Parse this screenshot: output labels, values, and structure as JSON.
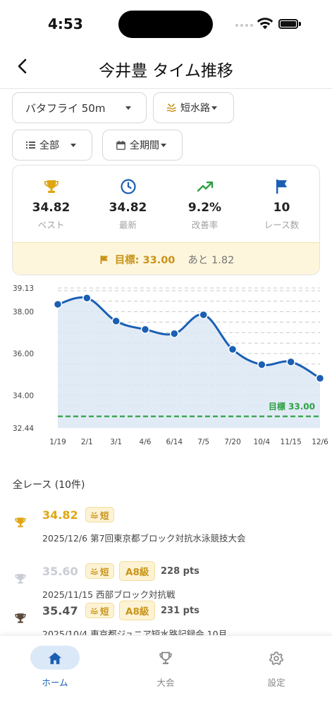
{
  "status_bar": {
    "time": "4:53"
  },
  "nav": {
    "title": "今井豊 タイム推移"
  },
  "filters": {
    "event": "バタフライ 50m",
    "course": "短水路",
    "category": "全部",
    "period": "全期間"
  },
  "stats": [
    {
      "icon": "trophy-icon",
      "value": "34.82",
      "label": "ベスト",
      "color": "#e0a614"
    },
    {
      "icon": "clock-icon",
      "value": "34.82",
      "label": "最新",
      "color": "#1a5fb4"
    },
    {
      "icon": "trending-up-icon",
      "value": "9.2%",
      "label": "改善率",
      "color": "#2ea043"
    },
    {
      "icon": "flag-icon",
      "value": "10",
      "label": "レース数",
      "color": "#1a5fb4"
    }
  ],
  "goal": {
    "label": "目標: 33.00",
    "remaining": "あと 1.82"
  },
  "chart_data": {
    "type": "line",
    "x": [
      "1/19",
      "2/1",
      "3/1",
      "4/6",
      "6/14",
      "7/5",
      "7/20",
      "10/4",
      "11/15",
      "12/6"
    ],
    "values": [
      38.35,
      38.65,
      37.55,
      37.15,
      36.95,
      37.85,
      36.2,
      35.47,
      35.6,
      34.82
    ],
    "ylim": [
      32.44,
      39.13
    ],
    "y_ticks": [
      "39.13",
      "38.00",
      "36.00",
      "34.00",
      "32.44"
    ],
    "goal_line": {
      "value": 33.0,
      "label": "目標 33.00",
      "color": "#2ea043"
    },
    "line_color": "#1a5fb4",
    "fill_color": "#dce8f5",
    "grid": true
  },
  "race_list": {
    "header": "全レース (10件)",
    "items": [
      {
        "time": "34.82",
        "course_badge": "短",
        "level": "",
        "points": "",
        "meet": "2025/12/6  第7回東京都ブロック対抗水泳競技大会",
        "trophy_color": "#e0a614",
        "time_color": "#e0a614"
      },
      {
        "time": "35.60",
        "course_badge": "短",
        "level": "A8級",
        "points": "228 pts",
        "meet": "2025/11/15  西部ブロック対抗戦",
        "trophy_color": "#c8ccd4",
        "time_color": "#c8ccd4"
      },
      {
        "time": "35.47",
        "course_badge": "短",
        "level": "A8級",
        "points": "231 pts",
        "meet": "2025/10/4  東京都ジュニア短水路記録会 10月",
        "trophy_color": "#5a4a3a",
        "time_color": "#555555"
      }
    ]
  },
  "tabs": [
    {
      "label": "ホーム",
      "icon": "home-icon",
      "active": true
    },
    {
      "label": "大会",
      "icon": "trophy-icon",
      "active": false
    },
    {
      "label": "設定",
      "icon": "gear-icon",
      "active": false
    }
  ]
}
